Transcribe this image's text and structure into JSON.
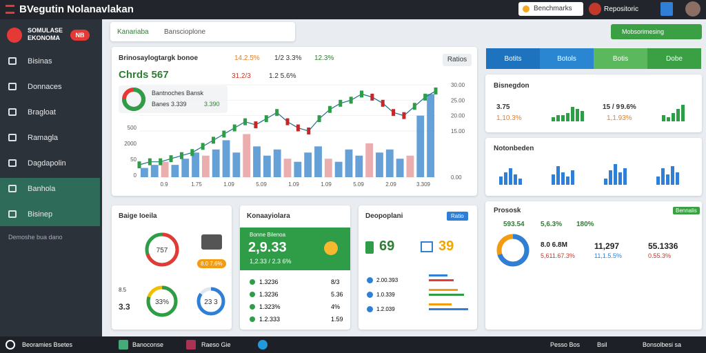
{
  "topbar": {
    "title": "BVegutin Nolanavlakan",
    "search": "Benchmarks",
    "user": "Repositoric"
  },
  "sidebar": {
    "brand": "SOMULASE EKONOMA",
    "badge": "NB",
    "items": [
      "Bisinas",
      "Donnaces",
      "Bragloat",
      "Ramagla",
      "Dagdapolin",
      "Banhola",
      "Bisinep"
    ],
    "footer": "Demoshe bua dano"
  },
  "tabs": [
    "Kanariaba",
    "Banscioplone"
  ],
  "action": "Mobsorimesing",
  "main_chart": {
    "title": "Brinosaylogtargk bonoe",
    "stats": [
      "14.2.5%",
      "1/2 3.3%",
      "12.3%"
    ],
    "headline": "Chrds 567",
    "sub_stats": [
      "31.2/3",
      "1.2 5.6%"
    ],
    "button": "Ratios",
    "legend": {
      "title": "Bantnoches Bansk",
      "value": "Banes 3.339",
      "change": "3.390",
      "share": 75
    },
    "ylim": [
      0,
      30
    ],
    "yticks": [
      {
        "value": 0,
        "label": "0.00"
      },
      {
        "value": 15,
        "label": "15.00"
      },
      {
        "value": 20,
        "label": "20.00"
      },
      {
        "value": 25,
        "label": "25.00"
      },
      {
        "value": 30,
        "label": "30.00"
      }
    ],
    "left_labels": [
      "500",
      "2000",
      "50",
      "0"
    ],
    "x_labels": [
      "0.9",
      "1.75",
      "1.09",
      "5.09",
      "1.09",
      "1.09",
      "5.09",
      "2.09",
      "3.309"
    ],
    "price": [
      4,
      5,
      5,
      6,
      7,
      8,
      10,
      12,
      14,
      16,
      18,
      17,
      19,
      21,
      18,
      16,
      15,
      19,
      22,
      24,
      25,
      27,
      26,
      24,
      21,
      20,
      23,
      26,
      28
    ],
    "volume": [
      3,
      4,
      5,
      4,
      6,
      8,
      7,
      9,
      12,
      8,
      14,
      10,
      7,
      9,
      6,
      5,
      8,
      10,
      6,
      5,
      9,
      7,
      11,
      8,
      9,
      6,
      7,
      20,
      27
    ]
  },
  "segments": [
    "Botits",
    "Botols",
    "Botis",
    "Dobe"
  ],
  "summary": {
    "title": "Bisnegdon",
    "items": [
      {
        "value": "3.75",
        "change": "1,10.3%"
      },
      {
        "value": "15 / 9",
        "change": "1,1.93%"
      }
    ],
    "extra": "9.6%",
    "bars": [
      [
        3,
        4,
        4,
        6,
        5
      ],
      [
        2,
        3,
        3,
        4,
        7
      ],
      [
        3,
        2,
        4,
        6,
        8
      ]
    ]
  },
  "overview": {
    "title": "Notonbeden",
    "bars": [
      [
        4,
        6,
        8,
        5,
        3
      ],
      [
        5,
        9,
        6,
        4,
        7
      ],
      [
        3,
        7,
        10,
        6,
        8
      ],
      [
        4,
        8,
        5,
        9,
        6
      ]
    ]
  },
  "prospect": {
    "title": "Prososk",
    "badge": "Bennalis",
    "stats": [
      "593.54",
      "5,6.3%",
      "180%"
    ],
    "share": 70,
    "columns": [
      {
        "value": "8.0 6.8M",
        "change": "5,611.67.3%"
      },
      {
        "value": "11,297",
        "change": "11,1.5.5%"
      },
      {
        "value": "55.1336",
        "change": "0.55.3%"
      }
    ]
  },
  "gauges": {
    "title": "Baige Ioeila",
    "labels": [
      "757",
      "33%",
      "23 3"
    ],
    "shares": [
      70,
      80,
      85
    ],
    "side": [
      "8.5",
      "3.3"
    ],
    "pill": "8.0 7.6%"
  },
  "ledger": {
    "title": "Konaayiolara",
    "label": "Bonne Bilenoa",
    "value": "2,9.33",
    "sub": "1,2.33 / 2.3 6%",
    "rows": [
      [
        "1.3236",
        "8/3"
      ],
      [
        "1.3236",
        "5.36"
      ],
      [
        "1.323%",
        "4%"
      ],
      [
        "1.2.333",
        "1.59"
      ]
    ]
  },
  "departments": {
    "title": "Deopoplani",
    "button": "Ratio",
    "left": "69",
    "right": "39",
    "rows": [
      "2.00.393",
      "1.0.339",
      "1.2.039"
    ],
    "progress": [
      [
        45,
        60
      ],
      [
        70,
        85
      ],
      [
        55,
        95
      ]
    ]
  },
  "taskbar": {
    "start": "Beoramies Bsetes",
    "apps": [
      "Banoconse",
      "Raeso Gie"
    ],
    "tray": [
      "Pesso Bos",
      "Bsil",
      "Bonsolbesi sa"
    ]
  }
}
